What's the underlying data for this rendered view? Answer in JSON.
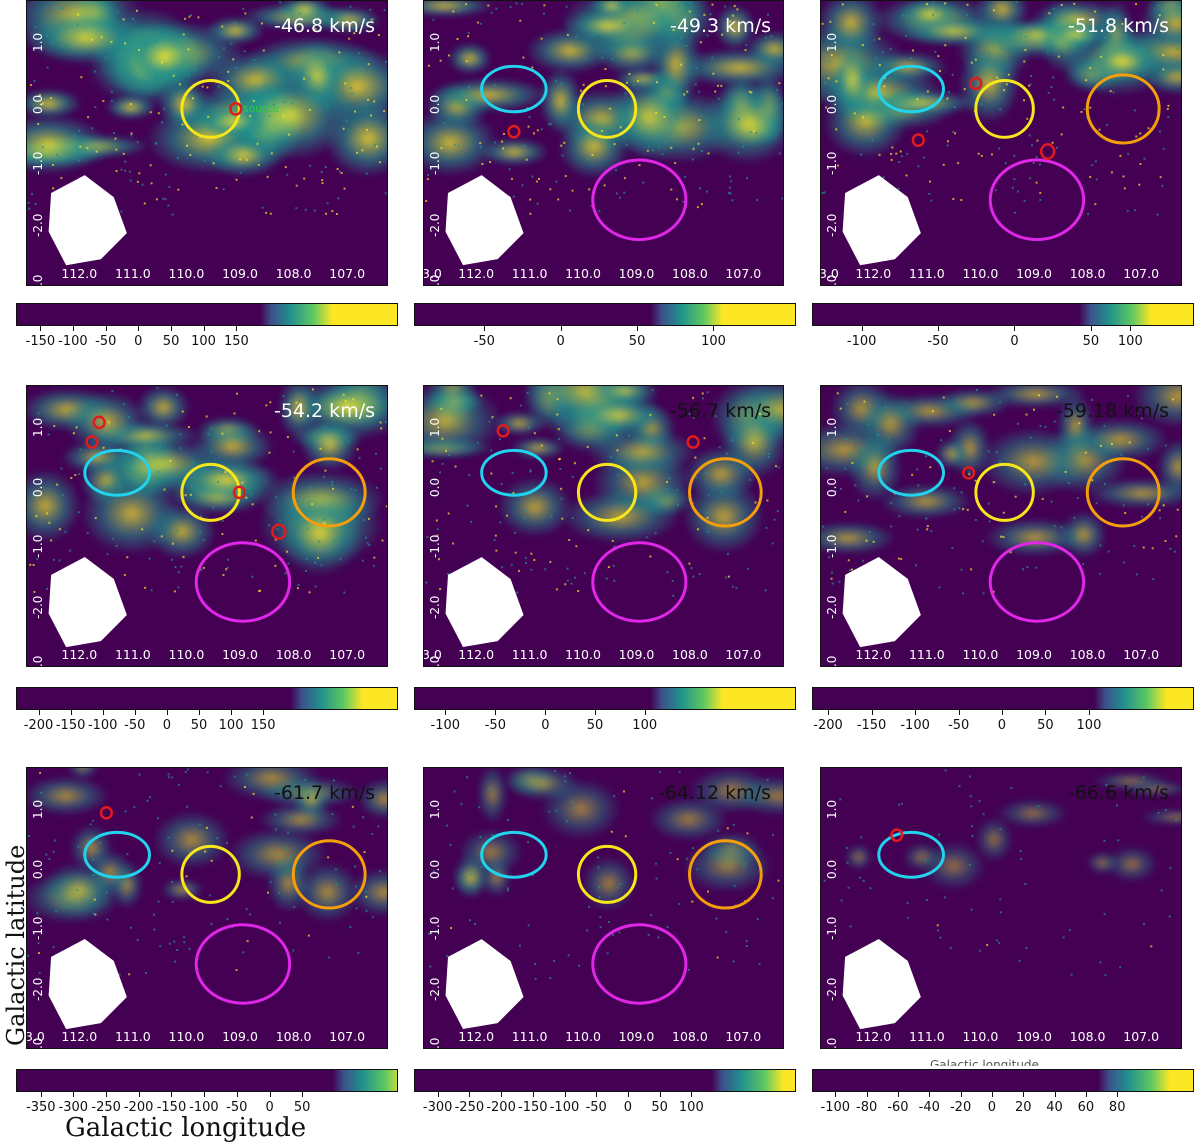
{
  "figure": {
    "x_axis_title": "Galactic longitude",
    "y_axis_title": "Galactic latitude",
    "cut_label": "Galactic longitude",
    "colors": {
      "background": "#440154",
      "mid": "#21918c",
      "high": "#fde725",
      "mask": "#ffffff",
      "circle_red": "#e31a1c",
      "circle_yellow": "#f7e61a",
      "circle_cyan": "#22d3ee",
      "circle_orange": "#f59e0b",
      "circle_magenta": "#e026e6",
      "marker_label": "#2ecc40"
    },
    "panels": [
      {
        "velocity": "-46.8 km/s",
        "velocity_color": "light",
        "lat_ticks": [
          "1.0",
          "0.0",
          "-1.0",
          "-2.0",
          "-3.0"
        ],
        "lon_ticks": [
          "112.0",
          "111.0",
          "110.0",
          "109.0",
          "108.0",
          "107.0"
        ],
        "lon_first": "",
        "marker_label": "source",
        "colorbar_ticks": [
          "-150",
          "-100",
          "-50",
          "0",
          "50",
          "100",
          "150"
        ]
      },
      {
        "velocity": "-49.3 km/s",
        "velocity_color": "light",
        "lat_ticks": [
          "1.0",
          "0.0",
          "-1.0",
          "-2.0",
          "-3.0"
        ],
        "lon_ticks": [
          "112.0",
          "111.0",
          "110.0",
          "109.0",
          "108.0",
          "107.0"
        ],
        "lon_first": "3.0",
        "marker_label": "",
        "colorbar_ticks": [
          "-50",
          "0",
          "50",
          "100"
        ]
      },
      {
        "velocity": "-51.8 km/s",
        "velocity_color": "light",
        "lat_ticks": [
          "1.0",
          "0.0",
          "-1.0",
          "-2.0",
          "-3.0"
        ],
        "lon_ticks": [
          "112.0",
          "111.0",
          "110.0",
          "109.0",
          "108.0",
          "107.0"
        ],
        "lon_first": "3.0",
        "marker_label": "",
        "colorbar_ticks": [
          "-100",
          "-50",
          "0",
          "50",
          "100"
        ]
      },
      {
        "velocity": "-54.2 km/s",
        "velocity_color": "light",
        "lat_ticks": [
          "1.0",
          "0.0",
          "-1.0",
          "-2.0",
          "-3.0"
        ],
        "lon_ticks": [
          "112.0",
          "111.0",
          "110.0",
          "109.0",
          "108.0",
          "107.0"
        ],
        "lon_first": "",
        "marker_label": "",
        "colorbar_ticks": [
          "-200",
          "-150",
          "-100",
          "-50",
          "0",
          "50",
          "100",
          "150"
        ]
      },
      {
        "velocity": "-56.7 km/s",
        "velocity_color": "dark",
        "lat_ticks": [
          "1.0",
          "0.0",
          "-1.0",
          "-2.0",
          "-3.0"
        ],
        "lon_ticks": [
          "112.0",
          "111.0",
          "110.0",
          "109.0",
          "108.0",
          "107.0"
        ],
        "lon_first": "3.0",
        "marker_label": "",
        "colorbar_ticks": [
          "-100",
          "-50",
          "0",
          "50",
          "100"
        ]
      },
      {
        "velocity": "-59.18 km/s",
        "velocity_color": "dark",
        "lat_ticks": [
          "1.0",
          "0.0",
          "-1.0",
          "-2.0",
          "-3.0"
        ],
        "lon_ticks": [
          "112.0",
          "111.0",
          "110.0",
          "109.0",
          "108.0",
          "107.0"
        ],
        "lon_first": "",
        "marker_label": "",
        "colorbar_ticks": [
          "-200",
          "-150",
          "-100",
          "-50",
          "0",
          "50",
          "100"
        ]
      },
      {
        "velocity": "-61.7 km/s",
        "velocity_color": "dark",
        "lat_ticks": [
          "1.0",
          "0.0",
          "-1.0",
          "-2.0",
          "-3.0"
        ],
        "lon_ticks": [
          "112.0",
          "111.0",
          "110.0",
          "109.0",
          "108.0",
          "107.0"
        ],
        "lon_first": "3.0",
        "marker_label": "",
        "colorbar_ticks": [
          "-350",
          "-300",
          "-250",
          "-200",
          "-150",
          "-100",
          "-50",
          "0",
          "50"
        ]
      },
      {
        "velocity": "-64.12 km/s",
        "velocity_color": "dark",
        "lat_ticks": [
          "1.0",
          "0.0",
          "-1.0",
          "-2.0",
          "-3.0"
        ],
        "lon_ticks": [
          "112.0",
          "111.0",
          "110.0",
          "109.0",
          "108.0",
          "107.0"
        ],
        "lon_first": "",
        "marker_label": "",
        "colorbar_ticks": [
          "-300",
          "-250",
          "-200",
          "-150",
          "-100",
          "-50",
          "0",
          "50",
          "100"
        ]
      },
      {
        "velocity": "-66.6 km/s",
        "velocity_color": "dark",
        "lat_ticks": [
          "1.0",
          "0.0",
          "-1.0",
          "-2.0",
          "-3.0"
        ],
        "lon_ticks": [
          "112.0",
          "111.0",
          "110.0",
          "109.0",
          "108.0",
          "107.0"
        ],
        "lon_first": "",
        "marker_label": "",
        "colorbar_ticks": [
          "-100",
          "-80",
          "-60",
          "-40",
          "-20",
          "0",
          "20",
          "40",
          "60",
          "80"
        ]
      }
    ]
  }
}
